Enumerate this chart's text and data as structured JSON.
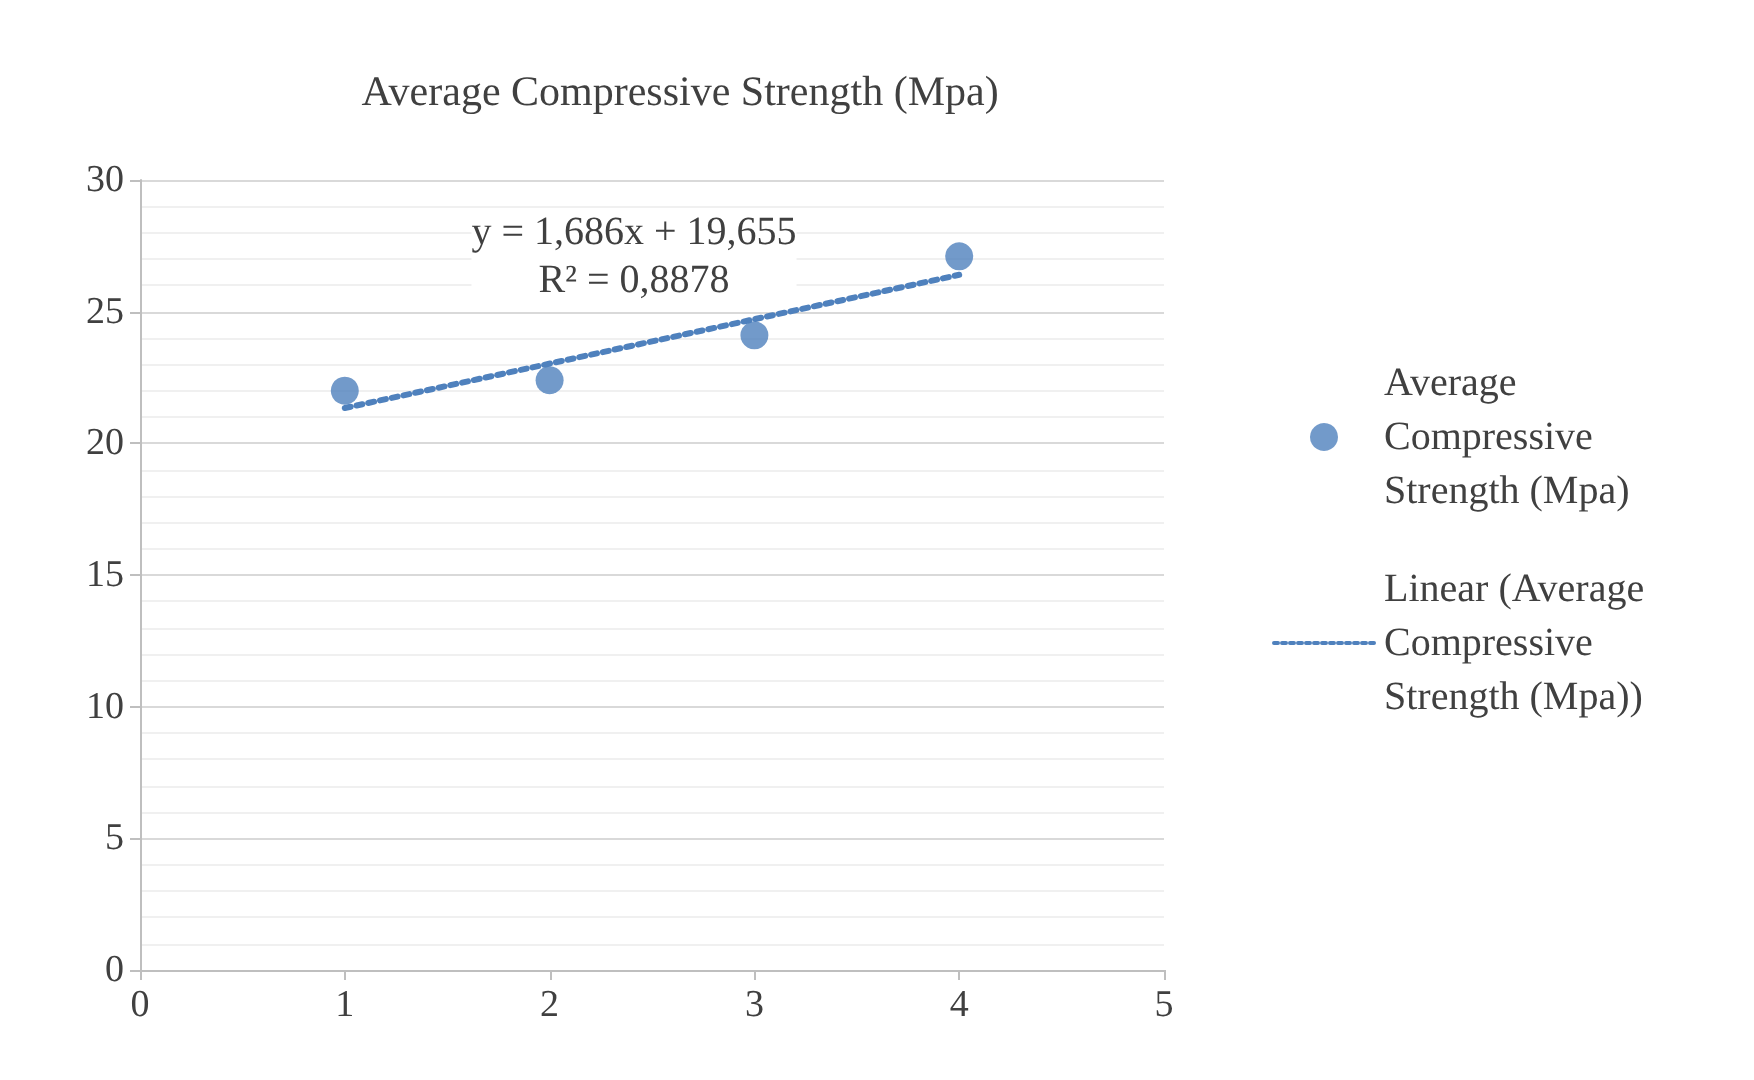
{
  "chart_data": {
    "type": "line",
    "title": "Average Compressive Strength (Mpa)",
    "series": [
      {
        "name": "Average Compressive Strength (Mpa)",
        "type": "scatter",
        "color": "#4f81bd",
        "marker": "circle",
        "x": [
          1,
          2,
          3,
          4
        ],
        "values": [
          22,
          22.4,
          24.1,
          27.1
        ]
      },
      {
        "name": "Linear (Average Compressive Strength (Mpa))",
        "color": "#4f81bd",
        "marker": "none",
        "line_style": "dotted",
        "x": [
          1,
          4
        ],
        "values": [
          21.34,
          26.4
        ]
      }
    ],
    "xlim": [
      0,
      5
    ],
    "xticks": [
      0,
      1,
      2,
      3,
      4,
      5
    ],
    "ylim": [
      0,
      30
    ],
    "yticks": [
      0,
      5,
      10,
      15,
      20,
      25,
      30
    ],
    "grid": "y",
    "legend": "right",
    "annotations": [
      "y = 1,686x + 19,655\nR² = 0,8878"
    ]
  }
}
